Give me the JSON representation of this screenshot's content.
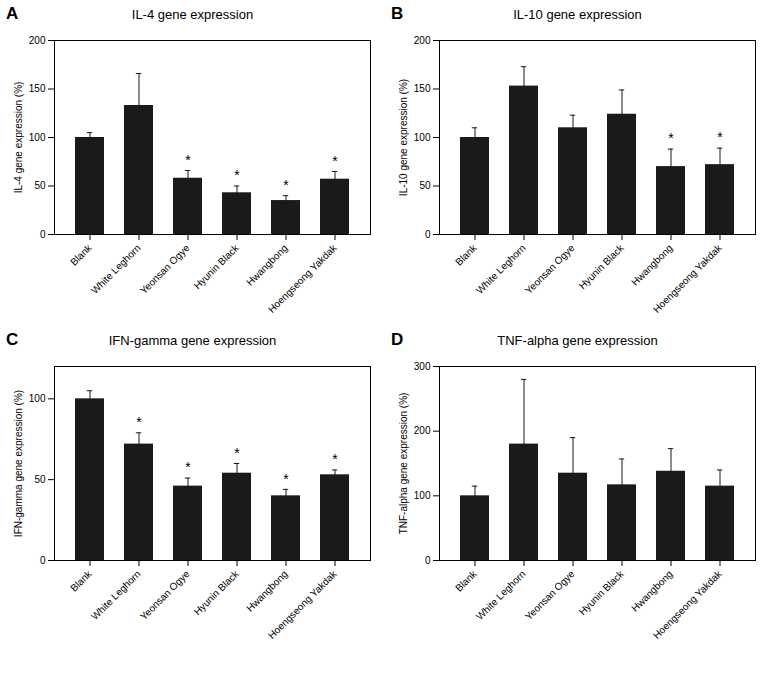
{
  "chart_data": [
    {
      "type": "bar",
      "label": "A",
      "title": "IL-4 gene expression",
      "ylabel": "IL-4 gene expression (%)",
      "categories": [
        "Blank",
        "White Leghorn",
        "Yeonsan Ogye",
        "Hyunin Black",
        "Hwangbong",
        "Hoengseong Yakdak"
      ],
      "values": [
        100,
        133,
        58,
        43,
        35,
        57
      ],
      "errors": [
        5,
        33,
        8,
        7,
        5,
        8
      ],
      "annotations": [
        {
          "category": "Yeonsan Ogye",
          "text": "*"
        },
        {
          "category": "Hyunin Black",
          "text": "*"
        },
        {
          "category": "Hwangbong",
          "text": "*"
        },
        {
          "category": "Hoengseong Yakdak",
          "text": "*"
        }
      ],
      "color": "#1a1a1a",
      "error_color": "#1a1a1a",
      "ylim": [
        0,
        200
      ],
      "yticks": [
        0,
        50,
        100,
        150,
        200
      ]
    },
    {
      "type": "bar",
      "label": "B",
      "title": "IL-10 gene expression",
      "ylabel": "IL-10 gene expression (%)",
      "categories": [
        "Blank",
        "White Leghorn",
        "Yeonsan Ogye",
        "Hyunin Black",
        "Hwangbong",
        "Hoengseong Yakdak"
      ],
      "values": [
        100,
        153,
        110,
        124,
        70,
        72
      ],
      "errors": [
        10,
        20,
        13,
        25,
        18,
        17
      ],
      "annotations": [
        {
          "category": "Hwangbong",
          "text": "*"
        },
        {
          "category": "Hoengseong Yakdak",
          "text": "*"
        }
      ],
      "color": "#1a1a1a",
      "error_color": "#1a1a1a",
      "ylim": [
        0,
        200
      ],
      "yticks": [
        0,
        50,
        100,
        150,
        200
      ]
    },
    {
      "type": "bar",
      "label": "C",
      "title": "IFN-gamma gene expression",
      "ylabel": "IFN-gamma gene expression (%)",
      "categories": [
        "Blank",
        "White Leghorn",
        "Yeonsan Ogye",
        "Hyunin Black",
        "Hwangbong",
        "Hoengseong Yakdak"
      ],
      "values": [
        100,
        72,
        46,
        54,
        40,
        53
      ],
      "errors": [
        5,
        7,
        5,
        6,
        4,
        3
      ],
      "annotations": [
        {
          "category": "White Leghorn",
          "text": "*"
        },
        {
          "category": "Yeonsan Ogye",
          "text": "*"
        },
        {
          "category": "Hyunin Black",
          "text": "*"
        },
        {
          "category": "Hwangbong",
          "text": "*"
        },
        {
          "category": "Hoengseong Yakdak",
          "text": "*"
        }
      ],
      "color": "#1a1a1a",
      "error_color": "#1a1a1a",
      "ylim": [
        0,
        120
      ],
      "yticks": [
        0,
        50,
        100
      ]
    },
    {
      "type": "bar",
      "label": "D",
      "title": "TNF-alpha gene expression",
      "ylabel": "TNF-alpha gene expression (%)",
      "categories": [
        "Blank",
        "White Leghorn",
        "Yeonsan Ogye",
        "Hyunin Black",
        "Hwangbong",
        "Hoengseong Yakdak"
      ],
      "values": [
        100,
        180,
        135,
        117,
        138,
        115
      ],
      "errors": [
        15,
        100,
        55,
        40,
        35,
        25
      ],
      "annotations": [],
      "color": "#1a1a1a",
      "error_color": "#1a1a1a",
      "ylim": [
        0,
        300
      ],
      "yticks": [
        0,
        100,
        200,
        300
      ]
    }
  ]
}
